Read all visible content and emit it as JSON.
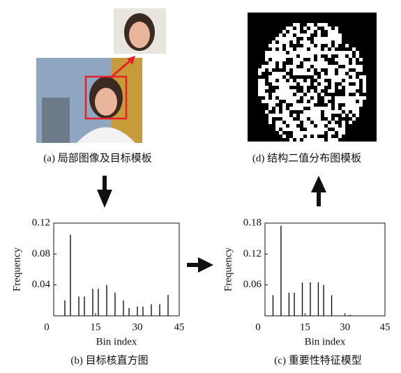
{
  "captions": {
    "a": "(a)  局部图像及目标模板",
    "d": "(d)  结构二值分布图模板"
  },
  "chart_data": [
    {
      "type": "histogram",
      "title": "(b)  目标核直方图",
      "x_label": "Bin index",
      "y_label": "Frequency",
      "x": [
        4,
        6,
        9,
        11,
        14,
        16,
        19,
        22,
        25,
        27,
        30,
        32,
        35,
        38,
        41
      ],
      "values": [
        0.02,
        0.105,
        0.025,
        0.025,
        0.035,
        0.035,
        0.04,
        0.03,
        0.02,
        0.01,
        0.012,
        0.012,
        0.015,
        0.015,
        0.027
      ],
      "xlim": [
        0,
        45
      ],
      "xticks": [
        0,
        15,
        30,
        45
      ],
      "ylim": [
        0,
        0.12
      ],
      "yticks": [
        0.04,
        0.08,
        0.12
      ],
      "color": "#000000"
    },
    {
      "type": "histogram",
      "title": "(c)  重要性特征模型",
      "x_label": "Bin index",
      "y_label": "Frequency",
      "x": [
        3,
        6,
        9,
        11,
        14,
        17,
        20,
        22,
        25,
        32
      ],
      "values": [
        0.04,
        0.175,
        0.045,
        0.045,
        0.065,
        0.065,
        0.065,
        0.06,
        0.04,
        0.002
      ],
      "xlim": [
        0,
        45
      ],
      "xticks": [
        0,
        15,
        30,
        45
      ],
      "ylim": [
        0,
        0.18
      ],
      "yticks": [
        0.06,
        0.12,
        0.18
      ],
      "color": "#000000"
    }
  ]
}
